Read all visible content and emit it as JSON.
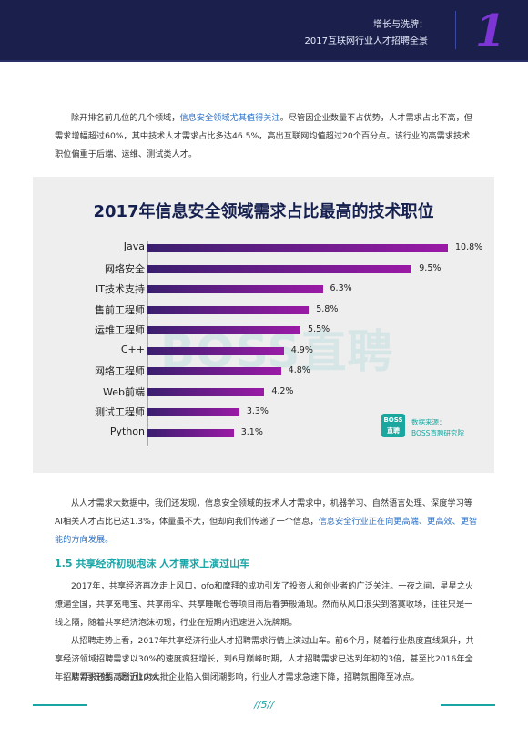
{
  "header": {
    "line1": "增长与洗牌：",
    "line2": "2017互联网行业人才招聘全景",
    "chapter_num": "1"
  },
  "para1": {
    "pre": "除开排名前几位的几个领域，",
    "highlight": "信息安全领域尤其值得关注",
    "post": "。尽管因企业数量不占优势，人才需求占比不高，但需求增幅超过60%，其中技术人才需求占比多达46.5%，高出互联网均值超过20个百分点。该行业的高需求技术职位偏重于后端、运维、测试类人才。"
  },
  "chart_data": {
    "type": "bar",
    "orientation": "horizontal",
    "title": "2017年信息安全领域需求占比最高的技术职位",
    "categories": [
      "Java",
      "网络安全",
      "IT技术支持",
      "售前工程师",
      "运维工程师",
      "C++",
      "网络工程师",
      "Web前端",
      "测试工程师",
      "Python"
    ],
    "values": [
      10.8,
      9.5,
      6.3,
      5.8,
      5.5,
      4.9,
      4.8,
      4.2,
      3.3,
      3.1
    ],
    "value_labels": [
      "10.8%",
      "9.5%",
      "6.3%",
      "5.8%",
      "5.5%",
      "4.9%",
      "4.8%",
      "4.2%",
      "3.3%",
      "3.1%"
    ],
    "unit": "%",
    "xlim": [
      0,
      12
    ],
    "colors": {
      "bar_start": "#3a1f6e",
      "bar_end": "#9a1aa6",
      "bg": "#eeeeee",
      "title": "#16204f"
    },
    "watermark": "BOSS直聘",
    "logo": {
      "line1": "BOSS",
      "line2": "直聘"
    },
    "source_label": "数据来源：",
    "source_value": "BOSS直聘研究院"
  },
  "para2": {
    "pre": "从人才需求大数据中，我们还发现，信息安全领域的技术人才需求中，机器学习、自然语言处理、深度学习等AI相关人才占比已达1.3%，体量虽不大，但却向我们传递了一个信息，",
    "highlight": "信息安全行业正在向更高端、更高效、更智能的方向发展。"
  },
  "section": {
    "title": "1.5 共享经济初现泡沫 人才需求上演过山车"
  },
  "para3": {
    "text": "2017年，共享经济再次走上风口，ofo和摩拜的成功引发了投资人和创业者的广泛关注。一夜之间，星星之火燎遍全国，共享充电宝、共享雨伞、共享睡眠仓等项目雨后春笋般涌现。然而从风口浪尖到落寞收场，往往只是一线之隔，随着共享经济泡沫初现，行业在短期内迅速进入洗牌期。"
  },
  "para4": {
    "text": "从招聘走势上看，2017年共享经济行业人才招聘需求行情上演过山车。前6个月，随着行业热度直线飙升，共享经济领域招聘需求以30%的速度疯狂增长，到6月巅峰时期，人才招聘需求已达到年初的3倍，甚至比2016年全年招聘需求还要高出近10%。"
  },
  "para5": {
    "text": "从7月开始，受行业内大批企业陷入倒闭潮影响，行业人才需求急速下降，招聘氛围降至冰点。"
  },
  "footer": {
    "page": "//5//"
  },
  "colors": {
    "accent_teal": "#18a5a6",
    "link_blue": "#2c72c7",
    "header_bg": "#1a1f4b"
  }
}
